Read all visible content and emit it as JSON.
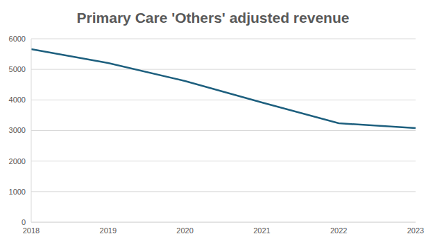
{
  "chart_data": {
    "type": "line",
    "title": "Primary Care 'Others' adjusted revenue",
    "categories": [
      "2018",
      "2019",
      "2020",
      "2021",
      "2022",
      "2023"
    ],
    "values": [
      5660,
      5207,
      4619,
      3917,
      3237,
      3079
    ],
    "color": "#1d5f7e",
    "ylim": [
      0,
      6000
    ],
    "yticks": [
      0,
      1000,
      2000,
      3000,
      4000,
      5000,
      6000
    ],
    "grid": true
  }
}
